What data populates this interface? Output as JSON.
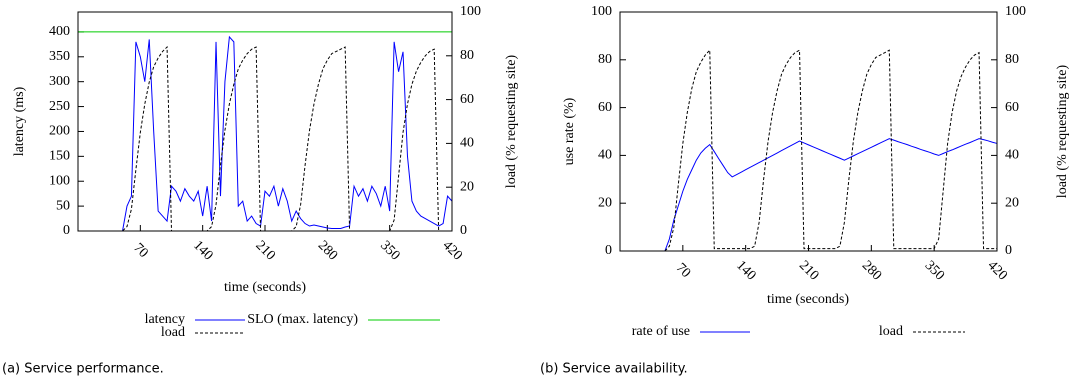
{
  "chart_data": [
    {
      "type": "line",
      "caption": "(a) Service performance.",
      "xlabel": "time (seconds)",
      "ylabel": "latency (ms)",
      "y2label": "load (% requesting site)",
      "xlim": [
        0,
        420
      ],
      "xticks": [
        70,
        140,
        210,
        280,
        350,
        420
      ],
      "ylim": [
        0,
        440
      ],
      "yticks": [
        0,
        50,
        100,
        150,
        200,
        250,
        300,
        350,
        400
      ],
      "y2lim": [
        0,
        100
      ],
      "y2ticks": [
        0,
        20,
        40,
        60,
        80,
        100
      ],
      "x": [
        0,
        5,
        10,
        15,
        20,
        25,
        30,
        35,
        40,
        45,
        50,
        55,
        60,
        65,
        70,
        75,
        80,
        85,
        90,
        95,
        100,
        105,
        110,
        115,
        120,
        125,
        130,
        135,
        140,
        145,
        150,
        155,
        160,
        165,
        170,
        175,
        180,
        185,
        190,
        195,
        200,
        205,
        210,
        215,
        220,
        225,
        230,
        235,
        240,
        245,
        250,
        255,
        260,
        265,
        270,
        275,
        280,
        285,
        290,
        295,
        300,
        305,
        310,
        315,
        320,
        325,
        330,
        335,
        340,
        345,
        350,
        355,
        360,
        365,
        370,
        375,
        380,
        385,
        390,
        395,
        400,
        405,
        410,
        415,
        420
      ],
      "series": [
        {
          "name": "latency",
          "color": "#0000ff",
          "line_style": "solid",
          "values": [
            0,
            0,
            0,
            0,
            0,
            0,
            0,
            0,
            0,
            0,
            0,
            50,
            70,
            380,
            350,
            300,
            385,
            200,
            40,
            30,
            20,
            90,
            80,
            60,
            85,
            70,
            60,
            80,
            30,
            90,
            20,
            380,
            70,
            300,
            390,
            380,
            50,
            60,
            20,
            30,
            15,
            10,
            80,
            70,
            90,
            50,
            85,
            60,
            20,
            40,
            25,
            15,
            10,
            12,
            10,
            8,
            6,
            5,
            5,
            5,
            8,
            10,
            90,
            70,
            85,
            60,
            90,
            75,
            50,
            90,
            40,
            380,
            320,
            360,
            150,
            60,
            40,
            30,
            25,
            20,
            15,
            10,
            15,
            70,
            60
          ]
        },
        {
          "name": "load",
          "color": "#000000",
          "line_style": "dashed",
          "axis": "y2",
          "values": [
            0,
            0,
            0,
            0,
            0,
            0,
            0,
            0,
            0,
            0,
            0,
            2,
            10,
            28,
            45,
            58,
            68,
            75,
            79,
            82,
            84,
            0,
            0,
            0,
            0,
            0,
            0,
            0,
            0,
            0,
            2,
            12,
            30,
            46,
            58,
            67,
            74,
            78,
            81,
            83,
            84,
            0,
            0,
            0,
            0,
            0,
            0,
            0,
            0,
            2,
            12,
            30,
            46,
            58,
            67,
            74,
            78,
            81,
            82,
            83,
            84,
            0,
            0,
            0,
            0,
            0,
            0,
            0,
            0,
            0,
            0,
            5,
            25,
            45,
            58,
            67,
            73,
            77,
            80,
            82,
            83,
            0,
            0,
            0,
            0
          ]
        },
        {
          "name": "SLO (max. latency)",
          "color": "#00cc00",
          "line_style": "solid",
          "values": [
            400,
            400,
            400,
            400,
            400,
            400,
            400,
            400,
            400,
            400,
            400,
            400,
            400,
            400,
            400,
            400,
            400,
            400,
            400,
            400,
            400,
            400,
            400,
            400,
            400,
            400,
            400,
            400,
            400,
            400,
            400,
            400,
            400,
            400,
            400,
            400,
            400,
            400,
            400,
            400,
            400,
            400,
            400,
            400,
            400,
            400,
            400,
            400,
            400,
            400,
            400,
            400,
            400,
            400,
            400,
            400,
            400,
            400,
            400,
            400,
            400,
            400,
            400,
            400,
            400,
            400,
            400,
            400,
            400,
            400,
            400,
            400,
            400,
            400,
            400,
            400,
            400,
            400,
            400,
            400,
            400,
            400,
            400,
            400,
            400
          ]
        }
      ]
    },
    {
      "type": "line",
      "caption": "(b) Service availability.",
      "xlabel": "time (seconds)",
      "ylabel": "use rate (%)",
      "y2label": "load (% requesting site)",
      "xlim": [
        0,
        420
      ],
      "xticks": [
        70,
        140,
        210,
        280,
        350,
        420
      ],
      "ylim": [
        0,
        100
      ],
      "yticks": [
        0,
        20,
        40,
        60,
        80,
        100
      ],
      "y2lim": [
        0,
        100
      ],
      "y2ticks": [
        0,
        20,
        40,
        60,
        80,
        100
      ],
      "x": [
        0,
        5,
        10,
        15,
        20,
        25,
        30,
        35,
        40,
        45,
        50,
        55,
        60,
        65,
        70,
        75,
        80,
        85,
        90,
        95,
        100,
        105,
        110,
        115,
        120,
        125,
        130,
        135,
        140,
        145,
        150,
        155,
        160,
        165,
        170,
        175,
        180,
        185,
        190,
        195,
        200,
        205,
        210,
        215,
        220,
        225,
        230,
        235,
        240,
        245,
        250,
        255,
        260,
        265,
        270,
        275,
        280,
        285,
        290,
        295,
        300,
        305,
        310,
        315,
        320,
        325,
        330,
        335,
        340,
        345,
        350,
        355,
        360,
        365,
        370,
        375,
        380,
        385,
        390,
        395,
        400,
        405,
        410,
        415,
        420
      ],
      "series": [
        {
          "name": "rate of use",
          "color": "#0000ff",
          "line_style": "solid",
          "values": [
            0,
            0,
            0,
            0,
            0,
            0,
            0,
            0,
            0,
            0,
            0,
            5,
            13,
            19,
            25,
            30,
            34,
            38,
            41,
            43,
            44.5,
            41.6,
            38.6,
            35.7,
            32.8,
            31,
            32,
            33,
            34,
            35,
            36,
            37,
            38,
            39,
            40,
            41,
            42,
            43,
            44,
            45,
            46,
            45.2,
            44.4,
            43.6,
            42.8,
            42,
            41.2,
            40.4,
            39.6,
            38.8,
            38,
            38.9,
            39.8,
            40.7,
            41.6,
            42.5,
            43.4,
            44.3,
            45.2,
            46.1,
            47,
            46.4,
            45.7,
            45.1,
            44.5,
            43.8,
            43.2,
            42.5,
            41.9,
            41.3,
            40.6,
            40,
            40.8,
            41.6,
            42.3,
            43.1,
            43.9,
            44.7,
            45.4,
            46.2,
            47,
            46.6,
            46.1,
            45.5,
            45
          ]
        },
        {
          "name": "load",
          "color": "#000000",
          "line_style": "dashed",
          "axis": "y2",
          "values": [
            0,
            0,
            0,
            0,
            0,
            0,
            0,
            0,
            0,
            0,
            0,
            2,
            10,
            28,
            45,
            58,
            68,
            75,
            79,
            82,
            84,
            1,
            1,
            1,
            1,
            1,
            1,
            1,
            1,
            1,
            2,
            12,
            30,
            46,
            58,
            67,
            74,
            78,
            81,
            83,
            84,
            1,
            1,
            1,
            1,
            1,
            1,
            1,
            1,
            2,
            12,
            30,
            46,
            58,
            67,
            74,
            78,
            81,
            82,
            83,
            84,
            1,
            1,
            1,
            1,
            1,
            1,
            1,
            1,
            1,
            1,
            5,
            25,
            45,
            58,
            67,
            73,
            77,
            80,
            82,
            83,
            1,
            1,
            1,
            1
          ]
        }
      ]
    }
  ]
}
